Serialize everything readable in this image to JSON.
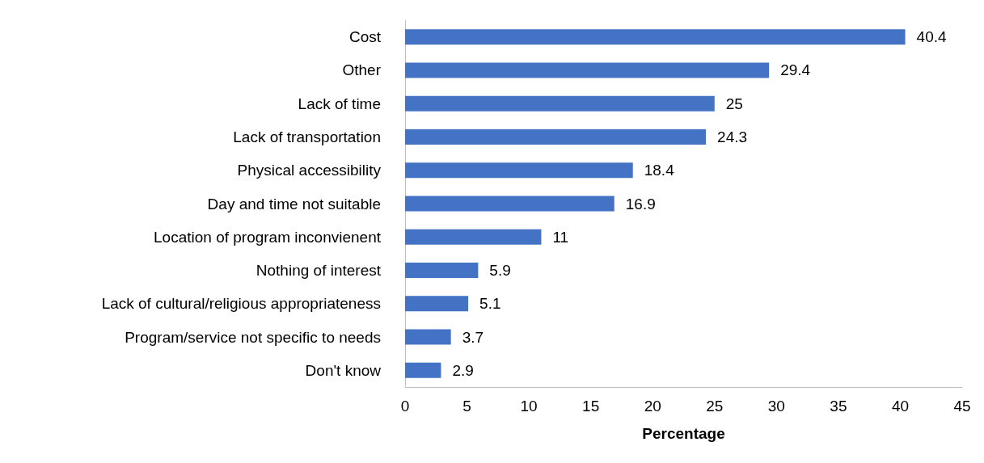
{
  "chart_data": {
    "type": "bar",
    "orientation": "horizontal",
    "xlabel": "Percentage",
    "categories": [
      "Cost",
      "Other",
      "Lack of time",
      "Lack of transportation",
      "Physical accessibility",
      "Day and time not suitable",
      "Location of program inconvienent",
      "Nothing of interest",
      "Lack of cultural/religious appropriateness",
      "Program/service not specific to needs",
      "Don't know"
    ],
    "values": [
      40.4,
      29.4,
      25,
      24.3,
      18.4,
      16.9,
      11,
      5.9,
      5.1,
      3.7,
      2.9
    ],
    "color": "#4472c4",
    "xlim": [
      0,
      45
    ],
    "xticks": [
      0,
      5,
      10,
      15,
      20,
      25,
      30,
      35,
      40,
      45
    ],
    "grid": false,
    "data_labels": true
  }
}
